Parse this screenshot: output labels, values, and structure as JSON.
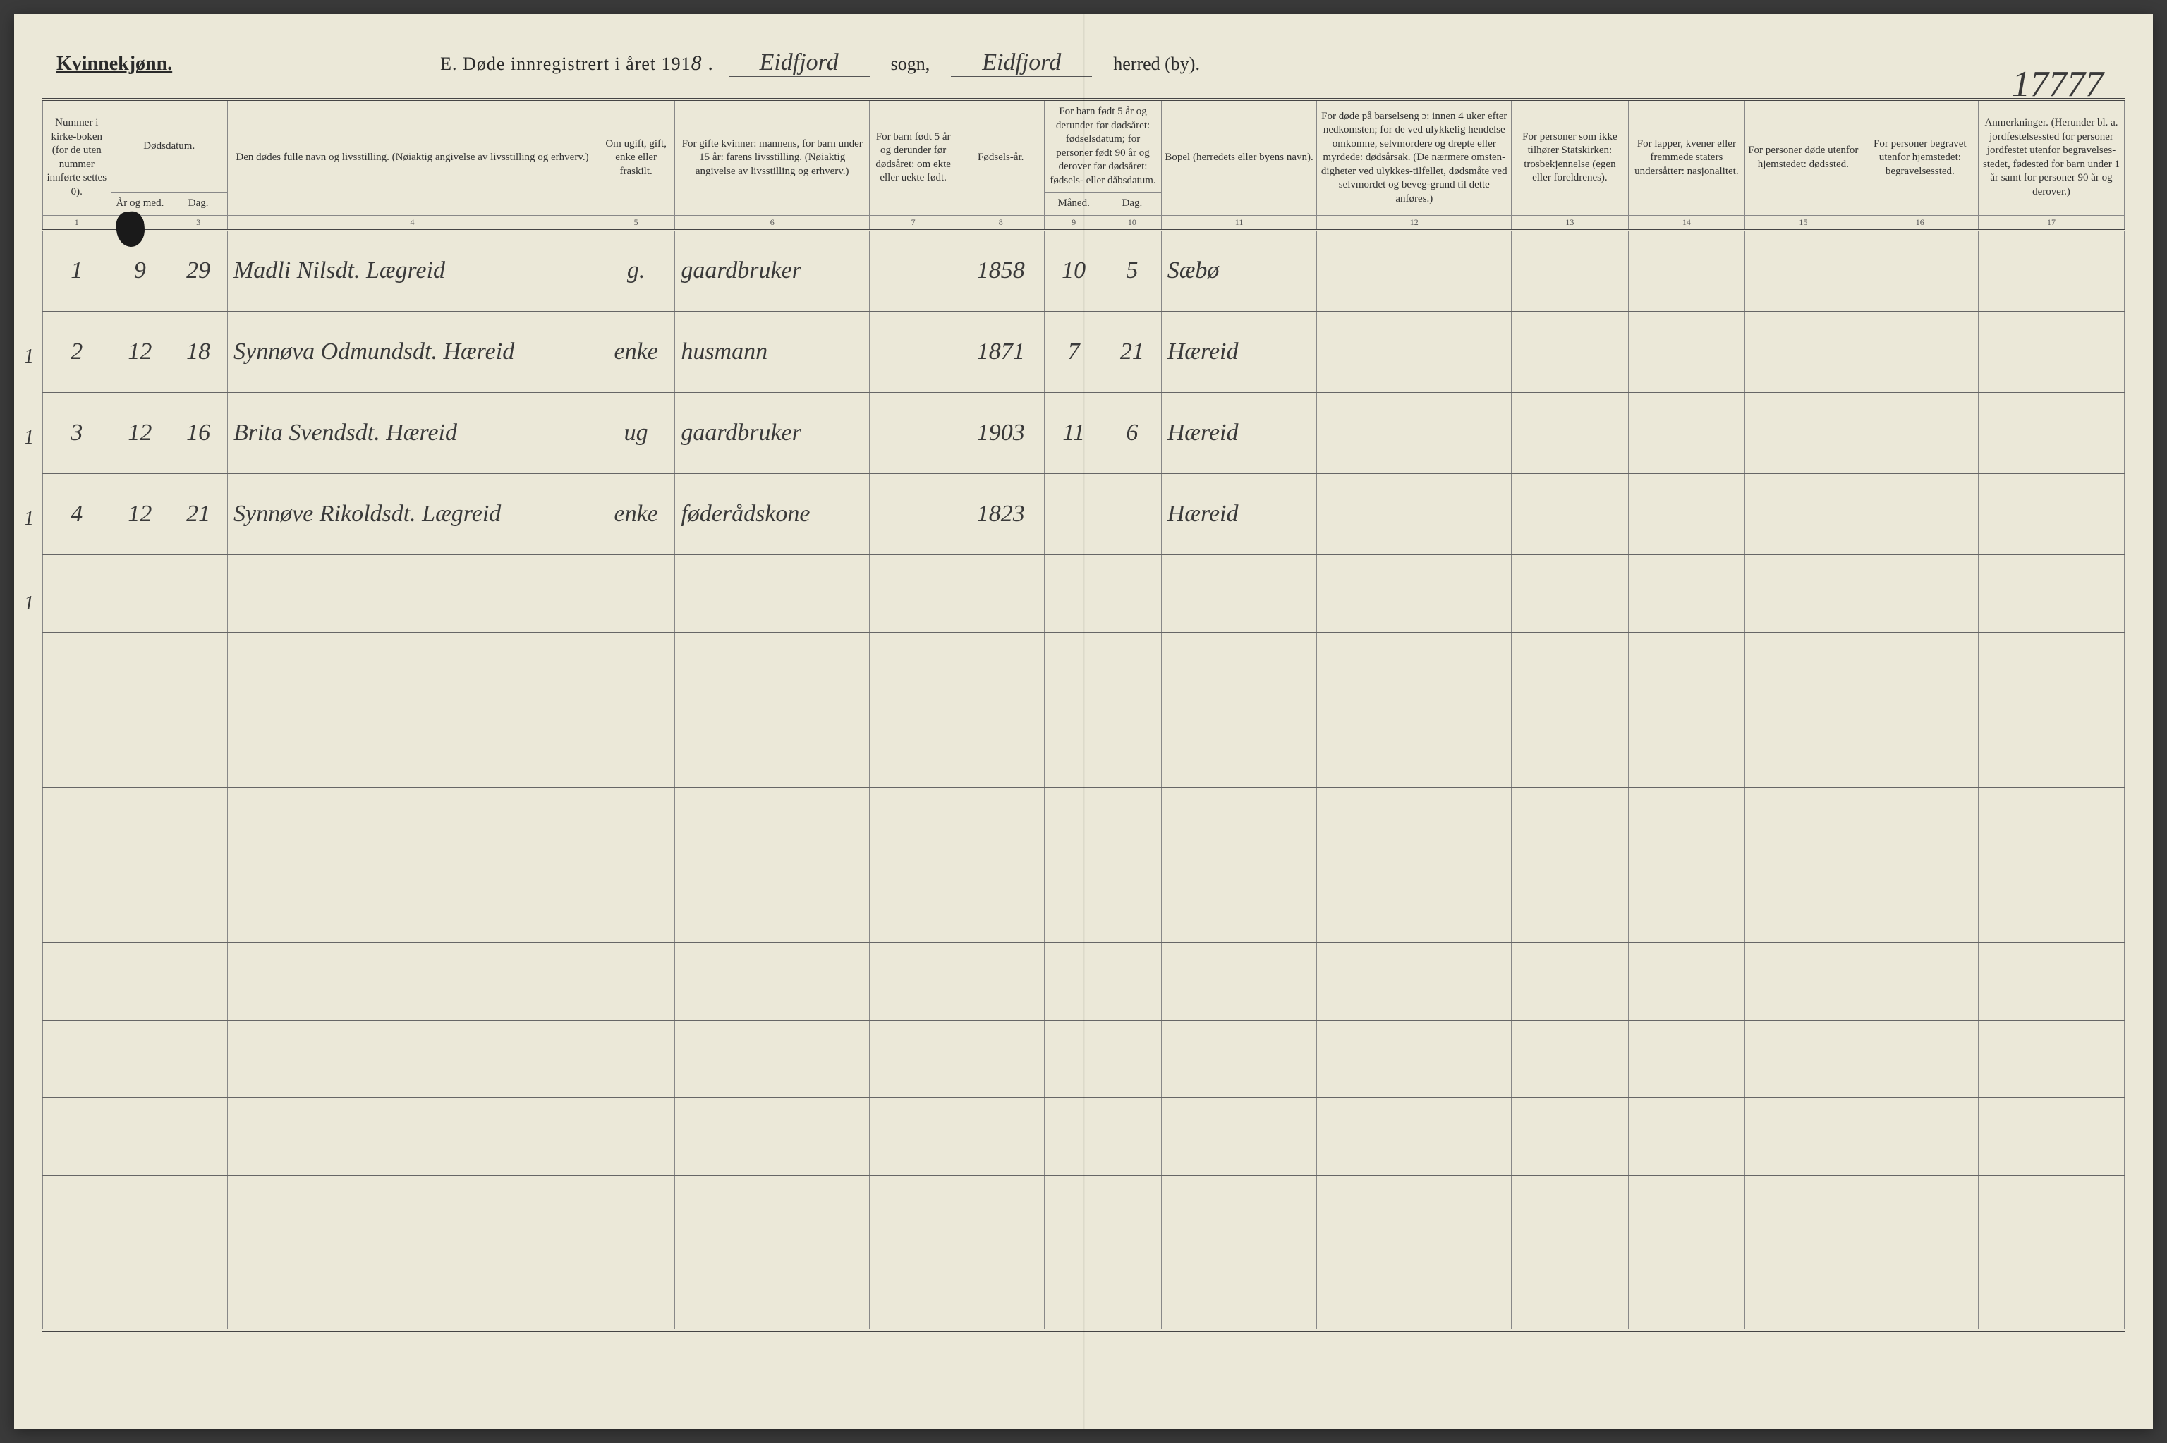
{
  "header": {
    "gender_title": "Kvinnekjønn.",
    "main_title_prefix": "E. Døde innregistrert i året 191",
    "year_suffix": "8 .",
    "sogn_value": "Eidfjord",
    "sogn_label": "sogn,",
    "herred_value": "Eidfjord",
    "herred_label": "herred (by).",
    "page_number": "17777"
  },
  "columns": {
    "c1": "Nummer i kirke-boken (for de uten nummer innførte settes 0).",
    "c2": "Dødsdatum.",
    "c2a": "År og med.",
    "c2b": "Dag.",
    "c4": "Den dødes fulle navn og livsstilling. (Nøiaktig angivelse av livsstilling og erhverv.)",
    "c5": "Om ugift, gift, enke eller fraskilt.",
    "c6": "For gifte kvinner: mannens, for barn under 15 år: farens livsstilling. (Nøiaktig angivelse av livsstilling og erhverv.)",
    "c7": "For barn født 5 år og derunder før dødsåret: om ekte eller uekte født.",
    "c8": "Fødsels-år.",
    "c9": "For barn født 5 år og derunder før dødsåret: fødselsdatum; for personer født 90 år og derover før dødsåret: fødsels- eller dåbsdatum.",
    "c9a": "Måned.",
    "c9b": "Dag.",
    "c11": "Bopel (herredets eller byens navn).",
    "c12": "For døde på barselseng ɔ: innen 4 uker efter nedkomsten; for de ved ulykkelig hendelse omkomne, selvmordere og drepte eller myrdede: dødsårsak. (De nærmere omsten-digheter ved ulykkes-tilfellet, dødsmåte ved selvmordet og beveg-grund til dette anføres.)",
    "c13": "For personer som ikke tilhører Statskirken: trosbekjennelse (egen eller foreldrenes).",
    "c14": "For lapper, kvener eller fremmede staters undersåtter: nasjonalitet.",
    "c15": "For personer døde utenfor hjemstedet: dødssted.",
    "c16": "For personer begravet utenfor hjemstedet: begravelsessted.",
    "c17": "Anmerkninger. (Herunder bl. a. jordfestelsessted for personer jordfestet utenfor begravelses-stedet, fødested for barn under 1 år samt for personer 90 år og derover.)"
  },
  "colnums": [
    "1",
    "2",
    "3",
    "4",
    "5",
    "6",
    "7",
    "8",
    "9",
    "10",
    "11",
    "12",
    "13",
    "14",
    "15",
    "16",
    "17"
  ],
  "rows": [
    {
      "mark": "1",
      "num": "1",
      "mnd": "9",
      "dag": "29",
      "navn": "Madli Nilsdt. Lægreid",
      "siv": "g.",
      "stand": "gaardbruker",
      "c7": "",
      "aar": "1858",
      "fm": "10",
      "fd": "5",
      "bopel": "Sæbø"
    },
    {
      "mark": "1",
      "num": "2",
      "mnd": "12",
      "dag": "18",
      "navn": "Synnøva Odmundsdt. Hæreid",
      "siv": "enke",
      "stand": "husmann",
      "c7": "",
      "aar": "1871",
      "fm": "7",
      "fd": "21",
      "bopel": "Hæreid"
    },
    {
      "mark": "1",
      "num": "3",
      "mnd": "12",
      "dag": "16",
      "navn": "Brita Svendsdt. Hæreid",
      "siv": "ug",
      "stand": "gaardbruker",
      "c7": "",
      "aar": "1903",
      "fm": "11",
      "fd": "6",
      "bopel": "Hæreid"
    },
    {
      "mark": "1",
      "num": "4",
      "mnd": "12",
      "dag": "21",
      "navn": "Synnøve Rikoldsdt. Lægreid",
      "siv": "enke",
      "stand": "føderådskone",
      "c7": "",
      "aar": "1823",
      "fm": "",
      "fd": "",
      "bopel": "Hæreid"
    }
  ],
  "empty_row_count": 10,
  "margin_mark_tops": [
    470,
    585,
    700,
    820
  ],
  "style": {
    "page_bg": "#ebe8d8",
    "ink_color": "#3a3a3a",
    "rule_color": "#888",
    "heavy_rule_color": "#444",
    "handwriting_fontsize": 34,
    "print_fontsize": 15
  },
  "col_widths_pct": [
    3.5,
    3,
    3,
    19,
    4,
    10,
    4.5,
    4.5,
    3,
    3,
    8,
    10,
    6,
    6,
    6,
    6,
    7.5
  ]
}
